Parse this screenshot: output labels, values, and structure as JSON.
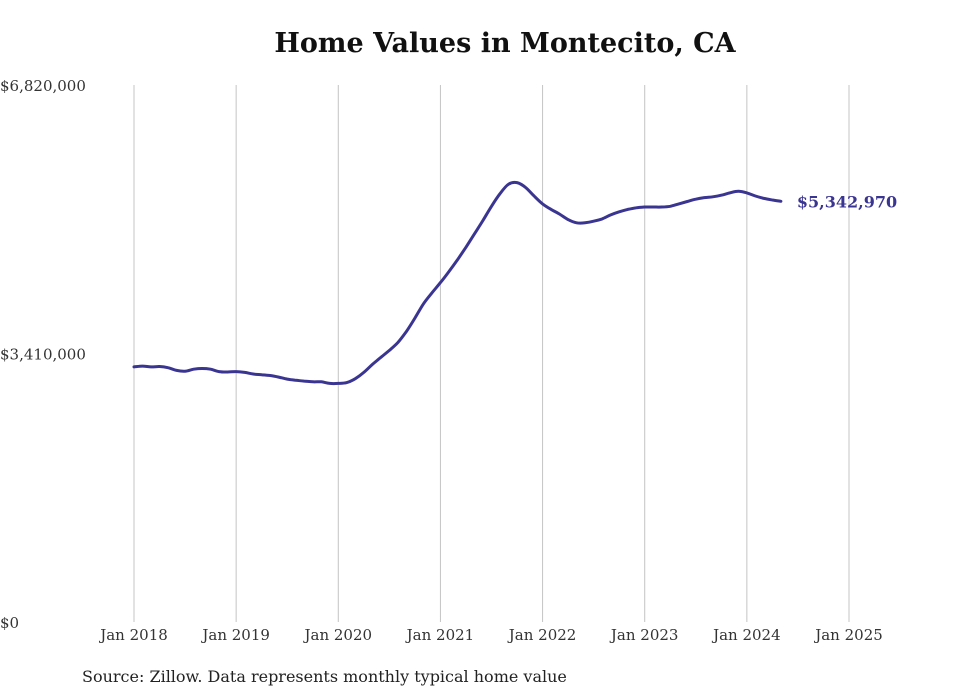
{
  "chart_data": {
    "type": "line",
    "title": "Home Values in Montecito, CA",
    "xlabel": "",
    "ylabel": "",
    "ylim": [
      0,
      6820000
    ],
    "yticks": [
      "$0",
      "$3,410,000",
      "$6,820,000"
    ],
    "xtick_labels": [
      "Jan 2018",
      "Jan 2019",
      "Jan 2020",
      "Jan 2021",
      "Jan 2022",
      "Jan 2023",
      "Jan 2024",
      "Jan 2025"
    ],
    "grid": "vertical",
    "end_label": "$5,342,970",
    "series": [
      {
        "color": "#3b3592",
        "points": [
          [
            "2018-01",
            3240000
          ],
          [
            "2018-02",
            3250000
          ],
          [
            "2018-03",
            3240000
          ],
          [
            "2018-04",
            3245000
          ],
          [
            "2018-05",
            3230000
          ],
          [
            "2018-06",
            3195000
          ],
          [
            "2018-07",
            3185000
          ],
          [
            "2018-08",
            3210000
          ],
          [
            "2018-09",
            3220000
          ],
          [
            "2018-10",
            3210000
          ],
          [
            "2018-11",
            3180000
          ],
          [
            "2018-12",
            3175000
          ],
          [
            "2019-01",
            3180000
          ],
          [
            "2019-02",
            3170000
          ],
          [
            "2019-03",
            3150000
          ],
          [
            "2019-04",
            3140000
          ],
          [
            "2019-05",
            3130000
          ],
          [
            "2019-06",
            3110000
          ],
          [
            "2019-07",
            3085000
          ],
          [
            "2019-08",
            3070000
          ],
          [
            "2019-09",
            3060000
          ],
          [
            "2019-10",
            3050000
          ],
          [
            "2019-11",
            3050000
          ],
          [
            "2019-12",
            3030000
          ],
          [
            "2020-01",
            3030000
          ],
          [
            "2020-02",
            3040000
          ],
          [
            "2020-03",
            3090000
          ],
          [
            "2020-04",
            3170000
          ],
          [
            "2020-05",
            3270000
          ],
          [
            "2020-06",
            3360000
          ],
          [
            "2020-07",
            3450000
          ],
          [
            "2020-08",
            3550000
          ],
          [
            "2020-09",
            3690000
          ],
          [
            "2020-10",
            3860000
          ],
          [
            "2020-11",
            4040000
          ],
          [
            "2020-12",
            4180000
          ],
          [
            "2021-01",
            4310000
          ],
          [
            "2021-02",
            4450000
          ],
          [
            "2021-03",
            4600000
          ],
          [
            "2021-04",
            4760000
          ],
          [
            "2021-05",
            4930000
          ],
          [
            "2021-06",
            5100000
          ],
          [
            "2021-07",
            5280000
          ],
          [
            "2021-08",
            5440000
          ],
          [
            "2021-09",
            5560000
          ],
          [
            "2021-10",
            5580000
          ],
          [
            "2021-11",
            5520000
          ],
          [
            "2021-12",
            5410000
          ],
          [
            "2022-01",
            5310000
          ],
          [
            "2022-02",
            5240000
          ],
          [
            "2022-03",
            5180000
          ],
          [
            "2022-04",
            5110000
          ],
          [
            "2022-05",
            5070000
          ],
          [
            "2022-06",
            5070000
          ],
          [
            "2022-07",
            5090000
          ],
          [
            "2022-08",
            5120000
          ],
          [
            "2022-09",
            5170000
          ],
          [
            "2022-10",
            5210000
          ],
          [
            "2022-11",
            5240000
          ],
          [
            "2022-12",
            5260000
          ],
          [
            "2023-01",
            5270000
          ],
          [
            "2023-02",
            5270000
          ],
          [
            "2023-03",
            5270000
          ],
          [
            "2023-04",
            5280000
          ],
          [
            "2023-05",
            5310000
          ],
          [
            "2023-06",
            5340000
          ],
          [
            "2023-07",
            5370000
          ],
          [
            "2023-08",
            5390000
          ],
          [
            "2023-09",
            5400000
          ],
          [
            "2023-10",
            5420000
          ],
          [
            "2023-11",
            5450000
          ],
          [
            "2023-12",
            5470000
          ],
          [
            "2024-01",
            5450000
          ],
          [
            "2024-02",
            5410000
          ],
          [
            "2024-03",
            5380000
          ],
          [
            "2024-04",
            5360000
          ],
          [
            "2024-05",
            5342970
          ]
        ]
      }
    ]
  },
  "source_note": "Source: Zillow. Data represents monthly typical home value"
}
